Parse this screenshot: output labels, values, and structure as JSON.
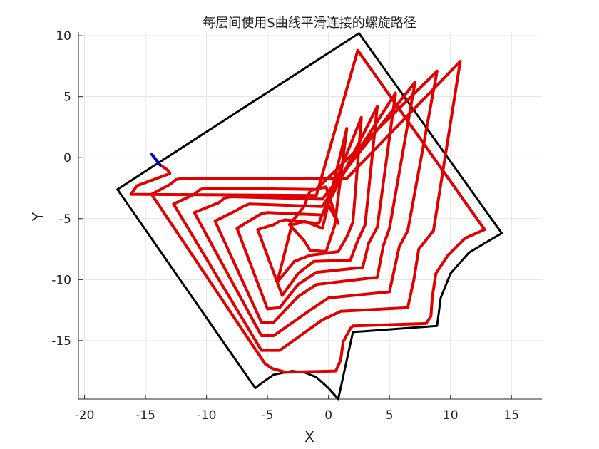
{
  "chart_data": {
    "type": "line",
    "title": "每层间使用S曲线平滑连接的螺旋路径",
    "xlabel": "X",
    "ylabel": "Y",
    "xlim": [
      -20.5,
      17.5
    ],
    "ylim": [
      -19.8,
      10.3
    ],
    "xticks": [
      -20,
      -15,
      -10,
      -5,
      0,
      5,
      10,
      15
    ],
    "yticks": [
      10,
      5,
      0,
      -5,
      -10,
      -15
    ],
    "xtick_labels": [
      "-20",
      "-15",
      "-10",
      "-5",
      "0",
      "5",
      "10",
      "15"
    ],
    "ytick_labels": [
      "10",
      "5",
      "0",
      "-5",
      "-10",
      "-15"
    ],
    "grid": true,
    "colors": {
      "boundary": "#000000",
      "spiral": "#e00000",
      "entry": "#0000cc",
      "grid": "#e3e3e3",
      "axis": "#262626"
    },
    "series": [
      {
        "role": "boundary",
        "x": [
          2.5,
          14.2,
          13.0,
          11.5,
          10.0,
          9.2,
          8.9,
          2.0,
          0.8,
          0.0,
          -1.0,
          -2.0,
          -3.0,
          -4.5,
          -5.5,
          -6.0,
          -17.3,
          2.5
        ],
        "y": [
          10.2,
          -6.2,
          -6.9,
          -7.8,
          -9.5,
          -11.5,
          -13.8,
          -14.3,
          -19.8,
          -18.9,
          -18.0,
          -17.6,
          -17.5,
          -17.8,
          -18.5,
          -18.9,
          -2.6,
          10.2
        ]
      },
      {
        "role": "entry",
        "x": [
          -14.5,
          -13.8
        ],
        "y": [
          0.3,
          -0.6
        ]
      },
      {
        "role": "spiral",
        "x": [
          -13.8,
          -13.2,
          -13.0,
          -15.7,
          -16.2,
          -1.0,
          2.4,
          12.8,
          11.2,
          9.8,
          8.8,
          8.5,
          8.4,
          8.0,
          2.0,
          1.8,
          1.2,
          1.0,
          0.6,
          -3.5,
          -4.6,
          -5.2,
          -14.5,
          -13.0,
          -12.5,
          -12.0,
          1.5,
          10.8,
          8.6,
          7.4,
          7.0,
          6.5,
          1.0,
          -0.5,
          -4.0,
          -5.5,
          -12.7,
          -11.0,
          -10.5,
          -10.0,
          -1.0,
          8.9,
          6.5,
          5.8,
          5.0,
          0.0,
          -1.5,
          -4.5,
          -5.5,
          -11.0,
          -9.0,
          -8.5,
          -8.0,
          -0.5,
          7.1,
          5.0,
          4.5,
          4.0,
          -1.0,
          -2.5,
          -4.5,
          -5.5,
          -9.3,
          -7.5,
          -7.0,
          -6.5,
          -0.5,
          5.5,
          4.0,
          3.3,
          2.8,
          -1.0,
          -2.5,
          -4.0,
          -5.0,
          -7.5,
          -6.2,
          -5.5,
          -5.0,
          -0.5,
          4.0,
          3.0,
          2.4,
          1.8,
          -1.2,
          -2.5,
          -3.8,
          -5.8,
          -4.5,
          -4.0,
          -3.5,
          -0.8,
          2.7,
          2.0,
          1.5,
          0.8,
          -1.5,
          -2.8,
          -4.2,
          -3.0,
          -2.5,
          -2.0,
          -0.5,
          1.5,
          0.5,
          -0.2,
          -1.5,
          -2.0,
          -3.2,
          -2.0,
          -1.5,
          -0.2,
          0.8,
          -0.2
        ],
        "y": [
          -0.6,
          -1.0,
          -1.3,
          -2.3,
          -3.0,
          -3.1,
          8.8,
          -5.9,
          -6.6,
          -8.0,
          -9.5,
          -11.5,
          -13.0,
          -13.6,
          -13.8,
          -14.0,
          -15.1,
          -16.6,
          -17.5,
          -17.6,
          -17.3,
          -16.9,
          -3.0,
          -2.2,
          -1.8,
          -1.7,
          -1.7,
          7.9,
          -6.0,
          -7.5,
          -10.0,
          -12.3,
          -12.6,
          -13.3,
          -15.8,
          -15.8,
          -3.8,
          -3.0,
          -2.6,
          -2.5,
          -2.6,
          7.1,
          -6.0,
          -7.3,
          -11.0,
          -11.5,
          -12.5,
          -14.6,
          -14.6,
          -4.5,
          -3.7,
          -3.3,
          -3.2,
          -3.4,
          6.2,
          -5.8,
          -7.2,
          -9.8,
          -10.4,
          -11.4,
          -13.5,
          -13.5,
          -5.2,
          -4.3,
          -4.0,
          -3.8,
          -4.0,
          5.3,
          -5.7,
          -7.0,
          -9.0,
          -9.4,
          -10.4,
          -12.3,
          -12.4,
          -5.8,
          -5.0,
          -4.6,
          -4.5,
          -4.7,
          4.2,
          -5.5,
          -6.8,
          -8.4,
          -8.5,
          -9.5,
          -11.3,
          -5.9,
          -5.5,
          -5.2,
          -5.1,
          -5.4,
          3.3,
          -5.3,
          -6.5,
          -7.7,
          -8.0,
          -8.5,
          -10.2,
          -5.5,
          -5.4,
          -5.2,
          -5.8,
          2.4,
          -5.6,
          -7.7,
          -7.6,
          -6.8,
          -5.5,
          -4.0,
          -2.7,
          -2.4,
          -5.4,
          -3.5
        ]
      }
    ]
  }
}
